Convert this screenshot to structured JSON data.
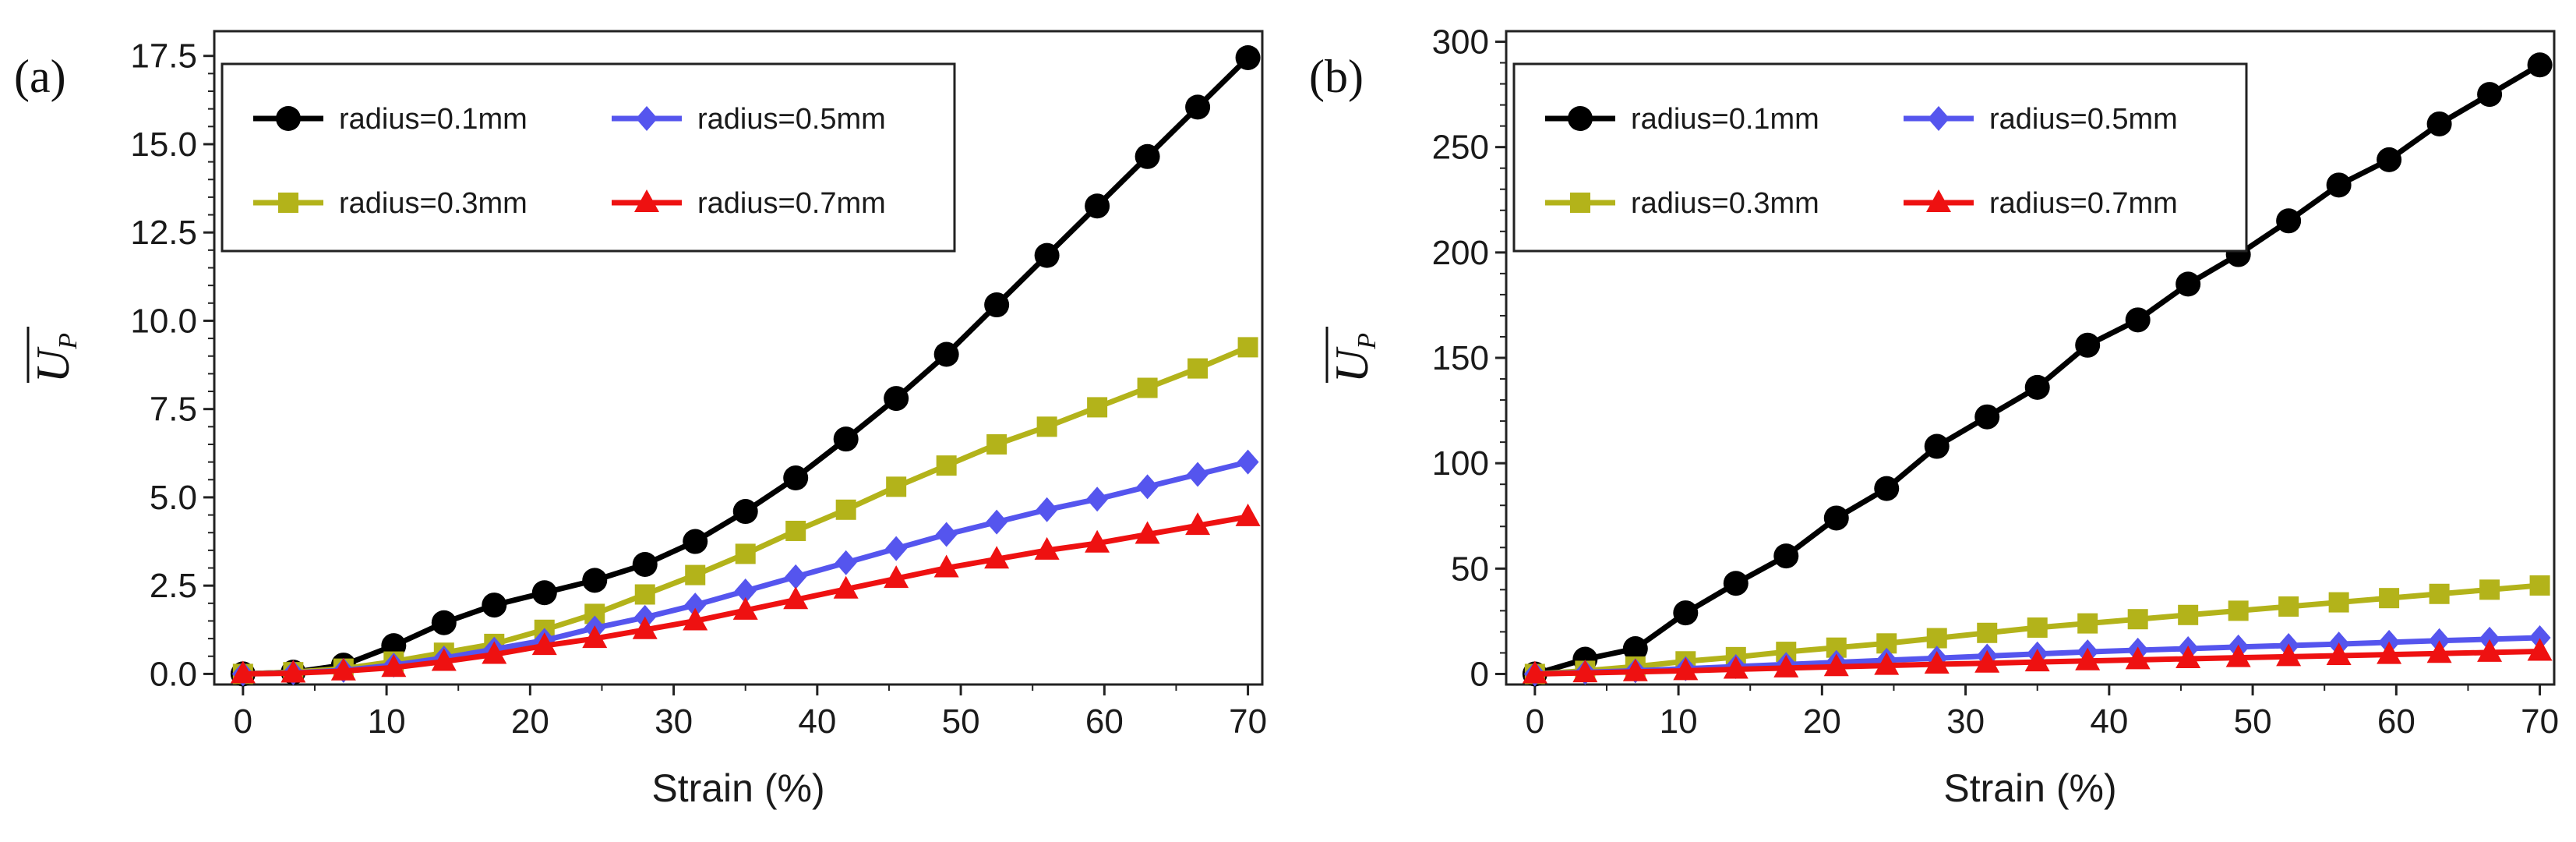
{
  "chart_data": [
    {
      "panel_label": "(a)",
      "type": "line",
      "xlabel": "Strain (%)",
      "ylabel": "U",
      "ylabel_sub": "P",
      "xlim": [
        -2,
        71
      ],
      "ylim": [
        -0.3,
        18.2
      ],
      "xticks": [
        0,
        10,
        20,
        30,
        40,
        50,
        60,
        70
      ],
      "yticks": [
        0.0,
        2.5,
        5.0,
        7.5,
        10.0,
        12.5,
        15.0,
        17.5
      ],
      "ytick_labels": [
        "0.0",
        "2.5",
        "5.0",
        "7.5",
        "10.0",
        "12.5",
        "15.0",
        "17.5"
      ],
      "legend_position": "top-left",
      "x": [
        0,
        3.5,
        7,
        10.5,
        14,
        17.5,
        21,
        24.5,
        28,
        31.5,
        35,
        38.5,
        42,
        45.5,
        49,
        52.5,
        56,
        59.5,
        63,
        66.5,
        70
      ],
      "series": [
        {
          "name": "radius=0.1mm",
          "color": "#000000",
          "marker": "circle",
          "values": [
            0.0,
            0.05,
            0.25,
            0.8,
            1.45,
            1.95,
            2.3,
            2.65,
            3.1,
            3.75,
            4.6,
            5.55,
            6.65,
            7.8,
            9.05,
            10.45,
            11.85,
            13.25,
            14.65,
            16.05,
            17.45
          ]
        },
        {
          "name": "radius=0.3mm",
          "color": "#b3b31a",
          "marker": "square",
          "values": [
            0.0,
            0.05,
            0.15,
            0.35,
            0.6,
            0.85,
            1.25,
            1.7,
            2.25,
            2.8,
            3.4,
            4.05,
            4.65,
            5.3,
            5.9,
            6.5,
            7.0,
            7.55,
            8.1,
            8.65,
            9.25
          ]
        },
        {
          "name": "radius=0.5mm",
          "color": "#5555ee",
          "marker": "diamond",
          "values": [
            0.0,
            0.03,
            0.1,
            0.25,
            0.45,
            0.7,
            0.95,
            1.3,
            1.6,
            1.95,
            2.35,
            2.75,
            3.15,
            3.55,
            3.95,
            4.3,
            4.65,
            4.95,
            5.3,
            5.65,
            6.0
          ]
        },
        {
          "name": "radius=0.7mm",
          "color": "#ee1111",
          "marker": "triangle",
          "values": [
            0.0,
            0.02,
            0.08,
            0.18,
            0.35,
            0.55,
            0.8,
            1.0,
            1.25,
            1.5,
            1.8,
            2.1,
            2.4,
            2.7,
            3.0,
            3.25,
            3.5,
            3.7,
            3.95,
            4.2,
            4.45
          ]
        }
      ]
    },
    {
      "panel_label": "(b)",
      "type": "line",
      "xlabel": "Strain (%)",
      "ylabel": "U",
      "ylabel_sub": "P",
      "xlim": [
        -2,
        71
      ],
      "ylim": [
        -5,
        305
      ],
      "xticks": [
        0,
        10,
        20,
        30,
        40,
        50,
        60,
        70
      ],
      "yticks": [
        0,
        50,
        100,
        150,
        200,
        250,
        300
      ],
      "ytick_labels": [
        "0",
        "50",
        "100",
        "150",
        "200",
        "250",
        "300"
      ],
      "legend_position": "top-left",
      "x": [
        0,
        3.5,
        7,
        10.5,
        14,
        17.5,
        21,
        24.5,
        28,
        31.5,
        35,
        38.5,
        42,
        45.5,
        49,
        52.5,
        56,
        59.5,
        63,
        66.5,
        70
      ],
      "series": [
        {
          "name": "radius=0.1mm",
          "color": "#000000",
          "marker": "circle",
          "values": [
            0,
            7,
            12,
            29,
            43,
            56,
            74,
            88,
            108,
            122,
            136,
            156,
            168,
            185,
            199,
            215,
            232,
            244,
            261,
            275,
            289
          ]
        },
        {
          "name": "radius=0.3mm",
          "color": "#b3b31a",
          "marker": "square",
          "values": [
            0,
            1.5,
            3.5,
            6,
            8,
            10.5,
            12.5,
            14.5,
            17,
            19.5,
            22,
            24,
            26,
            28,
            30,
            32,
            34,
            36,
            38,
            40,
            42
          ]
        },
        {
          "name": "radius=0.5mm",
          "color": "#5555ee",
          "marker": "diamond",
          "values": [
            0,
            0.8,
            1.5,
            2.5,
            3.5,
            4.5,
            5.5,
            6.5,
            7.5,
            8.5,
            9.5,
            10.5,
            11.3,
            12.0,
            12.8,
            13.5,
            14.2,
            15.0,
            15.8,
            16.5,
            17.2
          ]
        },
        {
          "name": "radius=0.7mm",
          "color": "#ee1111",
          "marker": "triangle",
          "values": [
            0,
            0.5,
            1.0,
            1.5,
            2.2,
            2.8,
            3.4,
            4.0,
            4.6,
            5.1,
            5.7,
            6.2,
            6.7,
            7.2,
            7.7,
            8.2,
            8.7,
            9.2,
            9.7,
            10.2,
            10.7
          ]
        }
      ]
    }
  ]
}
